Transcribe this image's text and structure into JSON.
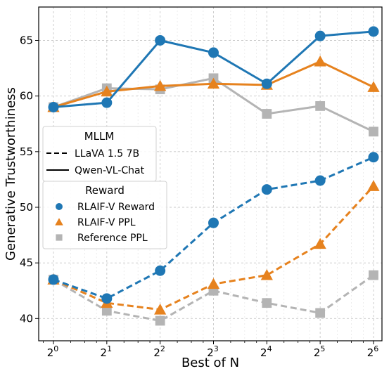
{
  "chart_data": {
    "type": "line",
    "xlabel": "Best of N",
    "ylabel": "Generative Trustworthiness",
    "x_scale": "log2",
    "x": [
      1,
      2,
      4,
      8,
      16,
      32,
      64
    ],
    "x_tick_labels": [
      {
        "base": "2",
        "exp": "0"
      },
      {
        "base": "2",
        "exp": "1"
      },
      {
        "base": "2",
        "exp": "2"
      },
      {
        "base": "2",
        "exp": "3"
      },
      {
        "base": "2",
        "exp": "4"
      },
      {
        "base": "2",
        "exp": "5"
      },
      {
        "base": "2",
        "exp": "6"
      }
    ],
    "ylim": [
      38,
      68
    ],
    "y_ticks": [
      40,
      45,
      50,
      55,
      60,
      65
    ],
    "grid": true,
    "colors": {
      "RLAIF-V Reward": "#1f77b4",
      "RLAIF-V PPL": "#e6821e",
      "Reference PPL": "#b4b4b4"
    },
    "series": [
      {
        "mllm": "Qwen-VL-Chat",
        "reward": "RLAIF-V Reward",
        "style": "solid",
        "marker": "circle",
        "values": [
          59.0,
          59.4,
          65.0,
          63.9,
          61.1,
          65.4,
          65.8
        ]
      },
      {
        "mllm": "Qwen-VL-Chat",
        "reward": "RLAIF-V PPL",
        "style": "solid",
        "marker": "triangle",
        "values": [
          59.0,
          60.4,
          60.9,
          61.1,
          61.0,
          63.1,
          60.8
        ]
      },
      {
        "mllm": "Qwen-VL-Chat",
        "reward": "Reference PPL",
        "style": "solid",
        "marker": "square",
        "values": [
          59.0,
          60.7,
          60.6,
          61.6,
          58.4,
          59.1,
          56.8
        ]
      },
      {
        "mllm": "LLaVA 1.5 7B",
        "reward": "RLAIF-V Reward",
        "style": "dashed",
        "marker": "circle",
        "values": [
          43.5,
          41.8,
          44.3,
          48.6,
          51.6,
          52.4,
          54.5
        ]
      },
      {
        "mllm": "LLaVA 1.5 7B",
        "reward": "RLAIF-V PPL",
        "style": "dashed",
        "marker": "triangle",
        "values": [
          43.5,
          41.4,
          40.8,
          43.1,
          43.9,
          46.7,
          51.9
        ]
      },
      {
        "mllm": "LLaVA 1.5 7B",
        "reward": "Reference PPL",
        "style": "dashed",
        "marker": "square",
        "values": [
          43.5,
          40.7,
          39.8,
          42.5,
          41.4,
          40.5,
          43.9
        ]
      }
    ],
    "legends": [
      {
        "title": "MLLM",
        "placement": "center-left",
        "entries": [
          {
            "label": "LLaVA 1.5 7B",
            "kind": "line",
            "style": "dashed"
          },
          {
            "label": "Qwen-VL-Chat",
            "kind": "line",
            "style": "solid"
          }
        ]
      },
      {
        "title": "Reward",
        "placement": "center-left",
        "entries": [
          {
            "label": "RLAIF-V Reward",
            "kind": "marker",
            "marker": "circle"
          },
          {
            "label": "RLAIF-V PPL",
            "kind": "marker",
            "marker": "triangle"
          },
          {
            "label": "Reference PPL",
            "kind": "marker",
            "marker": "square"
          }
        ]
      }
    ]
  }
}
